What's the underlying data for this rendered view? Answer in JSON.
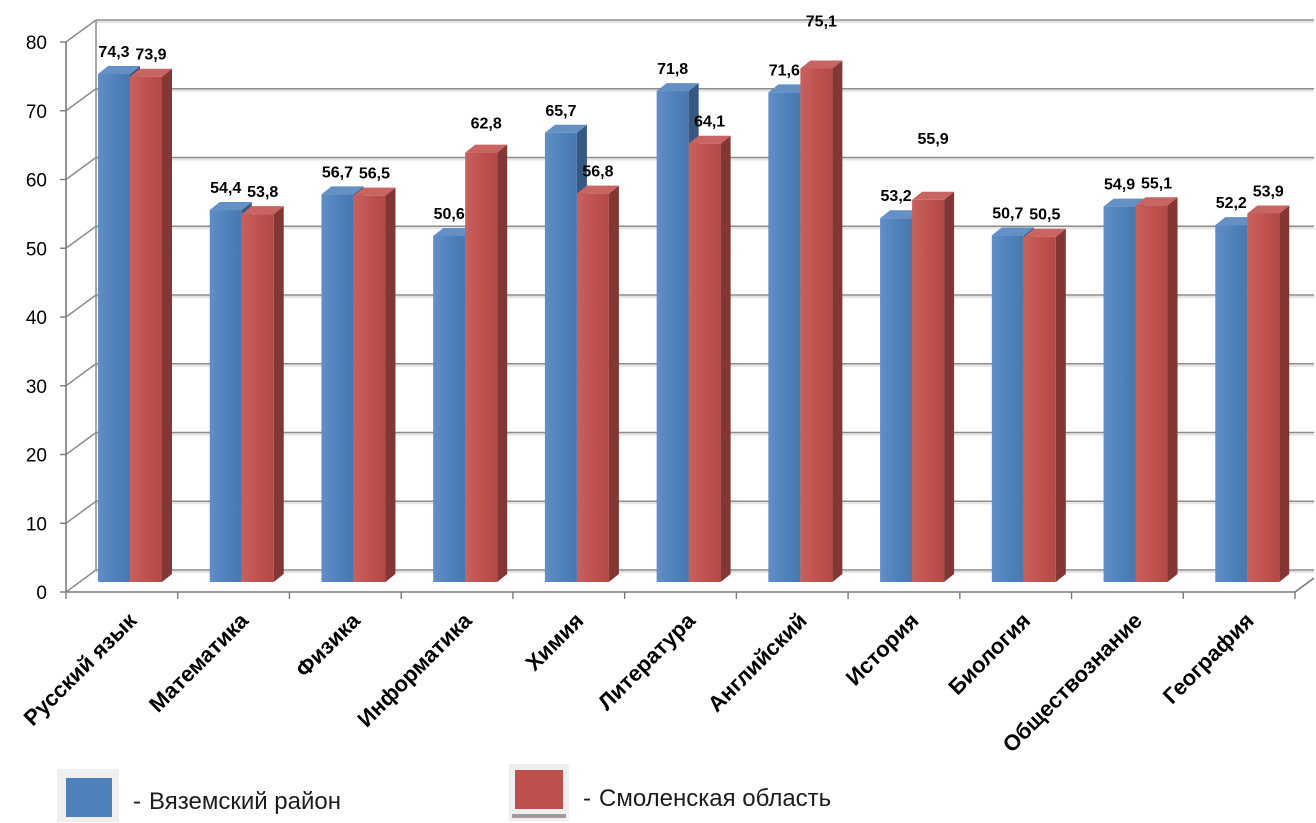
{
  "chart_data": {
    "type": "bar",
    "style": "3d-clustered-column",
    "categories": [
      "Русский язык",
      "Математика",
      "Физика",
      "Информатика",
      "Химия",
      "Литература",
      "Английский",
      "История",
      "Биология",
      "Обществознание",
      "География"
    ],
    "series": [
      {
        "name": "Вяземский район",
        "color": "#4F81BD",
        "values": [
          74.3,
          54.4,
          56.7,
          50.6,
          65.7,
          71.8,
          71.6,
          53.2,
          50.7,
          54.9,
          52.2
        ]
      },
      {
        "name": "Смоленская область",
        "color": "#C0504D",
        "values": [
          73.9,
          53.8,
          56.5,
          62.8,
          56.8,
          64.1,
          75.1,
          55.9,
          50.5,
          55.1,
          53.9
        ]
      }
    ],
    "data_labels": true,
    "ylim": [
      0,
      80
    ],
    "yticks": [
      0,
      10,
      20,
      30,
      40,
      50,
      60,
      70,
      80
    ],
    "grid": true,
    "legend_position": "bottom"
  },
  "legend": {
    "marker": "-"
  }
}
